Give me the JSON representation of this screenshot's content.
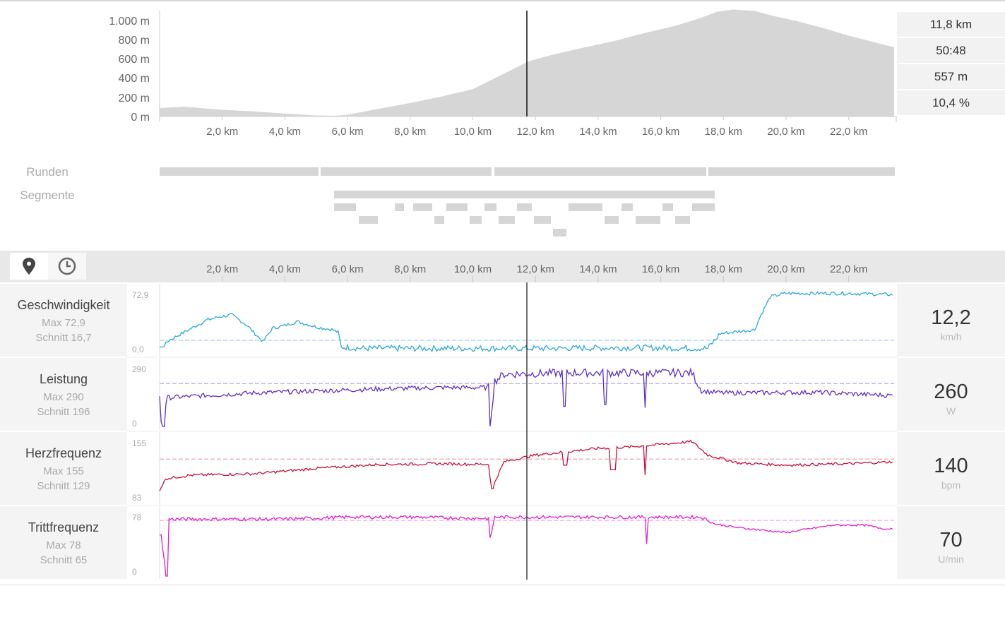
{
  "elevation": {
    "y_ticks": [
      "1.000 m",
      "800 m",
      "600 m",
      "400 m",
      "200 m",
      "0 m"
    ],
    "x_ticks": [
      "2,0 km",
      "4,0 km",
      "6,0 km",
      "8,0 km",
      "10,0 km",
      "12,0 km",
      "14,0 km",
      "16,0 km",
      "18,0 km",
      "20,0 km",
      "22,0 km"
    ],
    "fill_color": "#d6d6d6"
  },
  "cursor_readout": {
    "distance": "11,8 km",
    "time": "50:48",
    "elevation": "557 m",
    "grade": "10,4 %"
  },
  "rows": {
    "laps_label": "Runden",
    "segments_label": "Segmente"
  },
  "toolbar": {
    "distance_icon": "map-pin-icon",
    "time_icon": "clock-icon"
  },
  "metrics": [
    {
      "key": "speed",
      "name": "Geschwindigkeit",
      "max": "Max 72,9",
      "avg": "Schnitt 16,7",
      "y_top": "72,9",
      "y_bottom": "0,0",
      "value": "12,2",
      "unit": "km/h",
      "color": "#2aa8d8",
      "avg_color": "#9fd5ea"
    },
    {
      "key": "power",
      "name": "Leistung",
      "max": "Max 290",
      "avg": "Schnitt 196",
      "y_top": "290",
      "y_bottom": "0",
      "value": "260",
      "unit": "W",
      "color": "#5b2fc9",
      "avg_color": "#b8a6e3"
    },
    {
      "key": "hr",
      "name": "Herzfrequenz",
      "max": "Max 155",
      "avg": "Schnitt 129",
      "y_top": "155",
      "y_bottom": "83",
      "value": "140",
      "unit": "bpm",
      "color": "#c8103c",
      "avg_color": "#e79aae"
    },
    {
      "key": "cadence",
      "name": "Trittfrequenz",
      "max": "Max 78",
      "avg": "Schnitt 65",
      "y_top": "78",
      "y_bottom": "0",
      "value": "70",
      "unit": "U/min",
      "color": "#e81ccb",
      "avg_color": "#f1a7e6"
    }
  ]
}
